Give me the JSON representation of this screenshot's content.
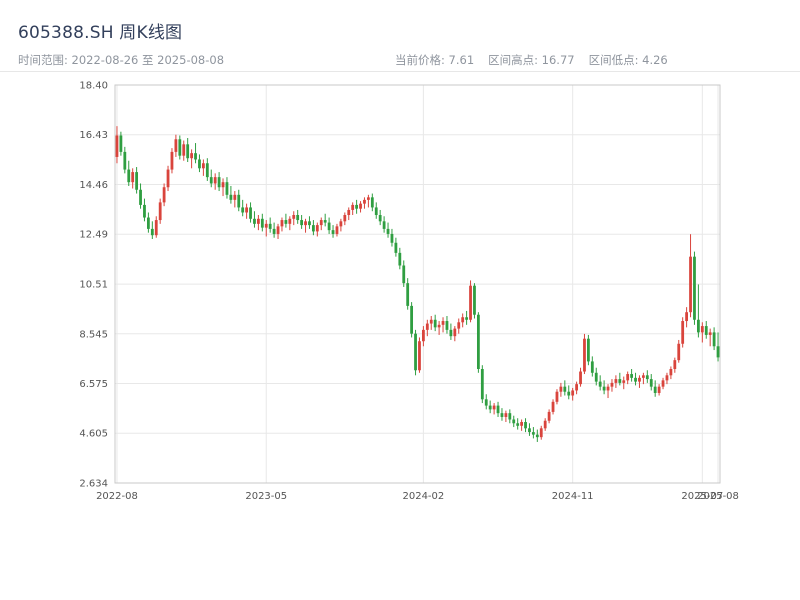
{
  "header": {
    "title": "605388.SH 周K线图",
    "date_range": "时间范围: 2022-08-26 至 2025-08-08",
    "current_price": "当前价格: 7.61",
    "range_high": "区间高点: 16.77",
    "range_low": "区间低点: 4.26"
  },
  "chart_data": {
    "type": "candlestick",
    "title": "605388.SH 周K线图",
    "symbol": "605388.SH",
    "period": "weekly",
    "date_start": "2022-08-26",
    "date_end": "2025-08-08",
    "current_price": 7.61,
    "range_high": 16.77,
    "range_low": 4.26,
    "ylim": [
      2.634,
      18.4
    ],
    "grid": true,
    "values_format": "[open, high, low, close]",
    "colors": {
      "up": "#d9443c",
      "down": "#2f9e41",
      "grid": "#e8e8e8",
      "axis": "#c9c9c9",
      "tick_text": "#555555"
    },
    "y_ticks": [
      {
        "v": 2.634,
        "label": "2.634"
      },
      {
        "v": 4.605,
        "label": "4.605"
      },
      {
        "v": 6.575,
        "label": "6.575"
      },
      {
        "v": 8.545,
        "label": "8.545"
      },
      {
        "v": 10.51,
        "label": "10.51"
      },
      {
        "v": 12.49,
        "label": "12.49"
      },
      {
        "v": 14.46,
        "label": "14.46"
      },
      {
        "v": 16.43,
        "label": "16.43"
      },
      {
        "v": 18.4,
        "label": "18.40"
      }
    ],
    "x_ticks": [
      {
        "week": 0,
        "label": "2022-08"
      },
      {
        "week": 38,
        "label": "2023-05"
      },
      {
        "week": 78,
        "label": "2024-02"
      },
      {
        "week": 116,
        "label": "2024-11"
      },
      {
        "week": 149,
        "label": "2025-07"
      },
      {
        "week": 153,
        "label": "2025-08"
      }
    ],
    "candles": [
      [
        15.55,
        16.77,
        15.3,
        16.4
      ],
      [
        16.4,
        16.55,
        15.6,
        15.75
      ],
      [
        15.75,
        15.95,
        14.9,
        15.05
      ],
      [
        15.05,
        15.4,
        14.4,
        14.55
      ],
      [
        14.55,
        15.1,
        14.3,
        14.95
      ],
      [
        14.95,
        15.15,
        14.1,
        14.25
      ],
      [
        14.25,
        14.5,
        13.5,
        13.65
      ],
      [
        13.65,
        13.9,
        13.0,
        13.15
      ],
      [
        13.15,
        13.35,
        12.55,
        12.7
      ],
      [
        12.7,
        13.0,
        12.3,
        12.45
      ],
      [
        12.45,
        13.2,
        12.35,
        13.05
      ],
      [
        13.05,
        13.9,
        12.9,
        13.75
      ],
      [
        13.75,
        14.5,
        13.6,
        14.35
      ],
      [
        14.35,
        15.2,
        14.2,
        15.05
      ],
      [
        15.05,
        15.9,
        14.9,
        15.75
      ],
      [
        15.75,
        16.43,
        15.55,
        16.25
      ],
      [
        16.25,
        16.4,
        15.45,
        15.6
      ],
      [
        15.6,
        16.2,
        15.4,
        16.05
      ],
      [
        16.05,
        16.3,
        15.35,
        15.5
      ],
      [
        15.5,
        15.85,
        15.1,
        15.7
      ],
      [
        15.7,
        16.1,
        15.3,
        15.45
      ],
      [
        15.45,
        15.65,
        14.95,
        15.1
      ],
      [
        15.1,
        15.45,
        14.8,
        15.3
      ],
      [
        15.3,
        15.5,
        14.6,
        14.75
      ],
      [
        14.75,
        15.05,
        14.35,
        14.5
      ],
      [
        14.5,
        14.9,
        14.25,
        14.75
      ],
      [
        14.75,
        14.95,
        14.2,
        14.35
      ],
      [
        14.35,
        14.7,
        14.0,
        14.55
      ],
      [
        14.55,
        14.75,
        13.9,
        14.05
      ],
      [
        14.05,
        14.4,
        13.7,
        13.85
      ],
      [
        13.85,
        14.2,
        13.55,
        14.05
      ],
      [
        14.05,
        14.25,
        13.4,
        13.55
      ],
      [
        13.55,
        13.85,
        13.2,
        13.35
      ],
      [
        13.35,
        13.7,
        13.1,
        13.55
      ],
      [
        13.55,
        13.75,
        12.95,
        13.1
      ],
      [
        13.1,
        13.4,
        12.75,
        12.9
      ],
      [
        12.9,
        13.25,
        12.65,
        13.1
      ],
      [
        13.1,
        13.3,
        12.6,
        12.75
      ],
      [
        12.75,
        13.05,
        12.4,
        12.9
      ],
      [
        12.9,
        13.15,
        12.55,
        12.7
      ],
      [
        12.7,
        12.95,
        12.35,
        12.5
      ],
      [
        12.5,
        12.9,
        12.3,
        12.8
      ],
      [
        12.8,
        13.15,
        12.6,
        13.05
      ],
      [
        13.05,
        13.3,
        12.75,
        12.9
      ],
      [
        12.9,
        13.2,
        12.65,
        13.1
      ],
      [
        13.1,
        13.4,
        12.85,
        13.25
      ],
      [
        13.25,
        13.45,
        12.9,
        13.05
      ],
      [
        13.05,
        13.25,
        12.7,
        12.85
      ],
      [
        12.85,
        13.1,
        12.55,
        13.0
      ],
      [
        13.0,
        13.2,
        12.7,
        12.85
      ],
      [
        12.85,
        13.05,
        12.45,
        12.6
      ],
      [
        12.6,
        12.95,
        12.4,
        12.85
      ],
      [
        12.85,
        13.15,
        12.65,
        13.05
      ],
      [
        13.05,
        13.3,
        12.8,
        12.95
      ],
      [
        12.95,
        13.15,
        12.5,
        12.65
      ],
      [
        12.65,
        12.85,
        12.35,
        12.5
      ],
      [
        12.5,
        12.9,
        12.4,
        12.8
      ],
      [
        12.8,
        13.1,
        12.6,
        13.0
      ],
      [
        13.0,
        13.35,
        12.85,
        13.25
      ],
      [
        13.25,
        13.55,
        13.05,
        13.45
      ],
      [
        13.45,
        13.75,
        13.25,
        13.65
      ],
      [
        13.65,
        13.85,
        13.3,
        13.5
      ],
      [
        13.5,
        13.8,
        13.35,
        13.7
      ],
      [
        13.7,
        13.95,
        13.5,
        13.85
      ],
      [
        13.85,
        14.05,
        13.55,
        13.95
      ],
      [
        13.95,
        14.1,
        13.4,
        13.55
      ],
      [
        13.55,
        13.75,
        13.1,
        13.25
      ],
      [
        13.25,
        13.45,
        12.85,
        13.0
      ],
      [
        13.0,
        13.2,
        12.55,
        12.7
      ],
      [
        12.7,
        12.95,
        12.35,
        12.5
      ],
      [
        12.5,
        12.7,
        12.0,
        12.15
      ],
      [
        12.15,
        12.35,
        11.6,
        11.75
      ],
      [
        11.75,
        11.95,
        11.1,
        11.25
      ],
      [
        11.25,
        11.45,
        10.4,
        10.55
      ],
      [
        10.55,
        10.75,
        9.5,
        9.65
      ],
      [
        9.65,
        9.8,
        8.4,
        8.55
      ],
      [
        8.55,
        8.7,
        6.9,
        7.1
      ],
      [
        7.1,
        8.4,
        7.0,
        8.25
      ],
      [
        8.25,
        8.85,
        8.05,
        8.7
      ],
      [
        8.7,
        9.1,
        8.45,
        8.95
      ],
      [
        8.95,
        9.25,
        8.7,
        9.1
      ],
      [
        9.1,
        9.3,
        8.65,
        8.8
      ],
      [
        8.8,
        9.05,
        8.5,
        8.9
      ],
      [
        8.9,
        9.2,
        8.6,
        9.05
      ],
      [
        9.05,
        9.25,
        8.55,
        8.7
      ],
      [
        8.7,
        8.95,
        8.3,
        8.45
      ],
      [
        8.45,
        8.85,
        8.25,
        8.75
      ],
      [
        8.75,
        9.15,
        8.55,
        9.0
      ],
      [
        9.0,
        9.35,
        8.8,
        9.2
      ],
      [
        9.2,
        9.45,
        8.9,
        9.1
      ],
      [
        9.1,
        10.66,
        9.0,
        10.45
      ],
      [
        10.45,
        10.55,
        9.15,
        9.3
      ],
      [
        9.3,
        9.4,
        7.0,
        7.15
      ],
      [
        7.15,
        7.3,
        5.8,
        5.95
      ],
      [
        5.95,
        6.15,
        5.55,
        5.7
      ],
      [
        5.7,
        5.9,
        5.4,
        5.55
      ],
      [
        5.55,
        5.8,
        5.35,
        5.7
      ],
      [
        5.7,
        5.85,
        5.25,
        5.4
      ],
      [
        5.4,
        5.6,
        5.1,
        5.25
      ],
      [
        5.25,
        5.5,
        5.05,
        5.4
      ],
      [
        5.4,
        5.55,
        5.0,
        5.15
      ],
      [
        5.15,
        5.3,
        4.85,
        5.0
      ],
      [
        5.0,
        5.2,
        4.75,
        4.9
      ],
      [
        4.9,
        5.15,
        4.7,
        5.05
      ],
      [
        5.05,
        5.2,
        4.65,
        4.8
      ],
      [
        4.8,
        5.0,
        4.5,
        4.65
      ],
      [
        4.65,
        4.85,
        4.4,
        4.55
      ],
      [
        4.55,
        4.75,
        4.26,
        4.45
      ],
      [
        4.45,
        4.9,
        4.35,
        4.8
      ],
      [
        4.8,
        5.2,
        4.7,
        5.1
      ],
      [
        5.1,
        5.55,
        5.0,
        5.45
      ],
      [
        5.45,
        5.95,
        5.35,
        5.85
      ],
      [
        5.85,
        6.35,
        5.75,
        6.25
      ],
      [
        6.25,
        6.6,
        6.05,
        6.45
      ],
      [
        6.45,
        6.7,
        6.1,
        6.25
      ],
      [
        6.25,
        6.5,
        5.95,
        6.1
      ],
      [
        6.1,
        6.4,
        5.9,
        6.3
      ],
      [
        6.3,
        6.65,
        6.15,
        6.55
      ],
      [
        6.55,
        7.2,
        6.45,
        7.05
      ],
      [
        7.05,
        8.54,
        6.95,
        8.35
      ],
      [
        8.35,
        8.5,
        7.3,
        7.45
      ],
      [
        7.45,
        7.65,
        6.85,
        7.0
      ],
      [
        7.0,
        7.2,
        6.5,
        6.65
      ],
      [
        6.65,
        6.9,
        6.3,
        6.45
      ],
      [
        6.45,
        6.7,
        6.15,
        6.3
      ],
      [
        6.3,
        6.55,
        6.0,
        6.45
      ],
      [
        6.45,
        6.75,
        6.25,
        6.6
      ],
      [
        6.6,
        6.9,
        6.4,
        6.75
      ],
      [
        6.75,
        7.0,
        6.5,
        6.6
      ],
      [
        6.6,
        6.85,
        6.35,
        6.7
      ],
      [
        6.7,
        7.05,
        6.55,
        6.95
      ],
      [
        6.95,
        7.15,
        6.65,
        6.8
      ],
      [
        6.8,
        7.0,
        6.5,
        6.65
      ],
      [
        6.65,
        6.9,
        6.4,
        6.8
      ],
      [
        6.8,
        7.0,
        6.55,
        6.9
      ],
      [
        6.9,
        7.1,
        6.6,
        6.75
      ],
      [
        6.75,
        6.95,
        6.3,
        6.45
      ],
      [
        6.45,
        6.7,
        6.05,
        6.2
      ],
      [
        6.2,
        6.55,
        6.1,
        6.45
      ],
      [
        6.45,
        6.8,
        6.35,
        6.7
      ],
      [
        6.7,
        7.0,
        6.55,
        6.9
      ],
      [
        6.9,
        7.25,
        6.75,
        7.15
      ],
      [
        7.15,
        7.6,
        7.0,
        7.5
      ],
      [
        7.5,
        8.3,
        7.4,
        8.15
      ],
      [
        8.15,
        9.2,
        8.0,
        9.05
      ],
      [
        9.05,
        9.6,
        8.8,
        9.4
      ],
      [
        9.4,
        12.49,
        9.2,
        11.6
      ],
      [
        11.6,
        11.8,
        8.9,
        9.1
      ],
      [
        9.1,
        10.5,
        8.4,
        8.6
      ],
      [
        8.6,
        9.0,
        8.2,
        8.85
      ],
      [
        8.85,
        9.05,
        8.35,
        8.5
      ],
      [
        8.5,
        8.75,
        8.05,
        8.6
      ],
      [
        8.6,
        8.8,
        7.9,
        8.05
      ],
      [
        8.05,
        8.6,
        7.45,
        7.61
      ]
    ]
  }
}
